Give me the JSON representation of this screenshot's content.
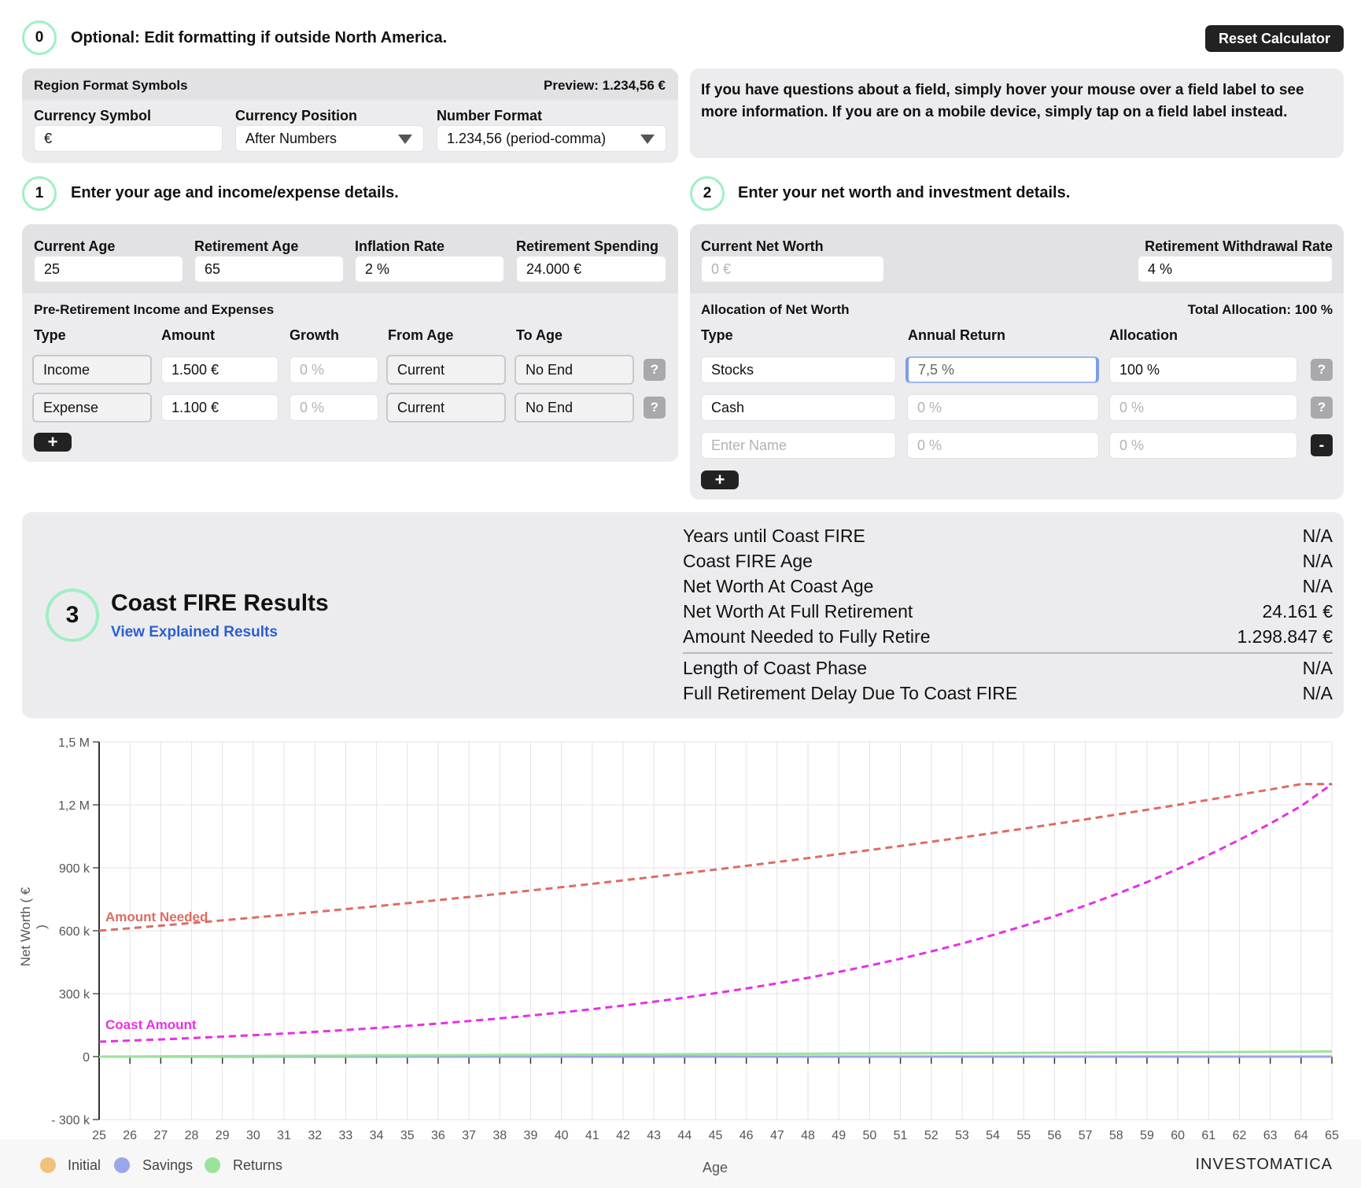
{
  "step0": {
    "number": "0",
    "title": "Optional: Edit formatting if outside North America.",
    "reset_label": "Reset Calculator"
  },
  "region": {
    "heading": "Region Format Symbols",
    "preview": "Preview: 1.234,56 €",
    "currency_symbol_label": "Currency Symbol",
    "currency_symbol_value": "€",
    "currency_position_label": "Currency Position",
    "currency_position_value": "After Numbers",
    "number_format_label": "Number Format",
    "number_format_value": "1.234,56 (period-comma)"
  },
  "info_text": "If you have questions about a field, simply hover your mouse over a field label to see more information. If you are on a mobile device, simply tap on a field label instead.",
  "step1": {
    "number": "1",
    "title": "Enter your age and income/expense details.",
    "current_age_label": "Current Age",
    "current_age": "25",
    "retirement_age_label": "Retirement Age",
    "retirement_age": "65",
    "inflation_label": "Inflation Rate",
    "inflation": "2 %",
    "spending_label": "Retirement Spending",
    "spending": "24.000 €",
    "section_title": "Pre-Retirement Income and Expenses",
    "columns": [
      "Type",
      "Amount",
      "Growth",
      "From Age",
      "To Age"
    ],
    "rows": [
      {
        "type": "Income",
        "amount": "1.500 €",
        "growth": "0 %",
        "from": "Current",
        "to": "No End",
        "help": "?"
      },
      {
        "type": "Expense",
        "amount": "1.100 €",
        "growth": "0 %",
        "from": "Current",
        "to": "No End",
        "help": "?"
      }
    ],
    "add_label": "+"
  },
  "step2": {
    "number": "2",
    "title": "Enter your net worth and investment details.",
    "net_worth_label": "Current Net Worth",
    "net_worth_placeholder": "0 €",
    "withdrawal_label": "Retirement Withdrawal Rate",
    "withdrawal": "4 %",
    "section_title": "Allocation of Net Worth",
    "total_allocation": "Total Allocation: 100 %",
    "columns": [
      "Type",
      "Annual Return",
      "Allocation"
    ],
    "rows": [
      {
        "type": "Stocks",
        "return": "7,5 %",
        "allocation": "100 %",
        "btn": "?"
      },
      {
        "type": "Cash",
        "return": "0 %",
        "allocation": "0 %",
        "btn": "?"
      },
      {
        "type": "Enter Name",
        "return": "0 %",
        "allocation": "0 %",
        "btn": "-"
      }
    ],
    "add_label": "+"
  },
  "results": {
    "number": "3",
    "title": "Coast FIRE Results",
    "link": "View Explained Results",
    "rows": [
      {
        "label": "Years until Coast FIRE",
        "value": "N/A"
      },
      {
        "label": "Coast FIRE Age",
        "value": "N/A"
      },
      {
        "label": "Net Worth At Coast Age",
        "value": "N/A"
      },
      {
        "label": "Net Worth At Full Retirement",
        "value": "24.161 €"
      },
      {
        "label": "Amount Needed to Fully Retire",
        "value": "1.298.847 €"
      },
      {
        "label": "Length of Coast Phase",
        "value": "N/A"
      },
      {
        "label": "Full Retirement Delay Due To Coast FIRE",
        "value": "N/A"
      }
    ]
  },
  "chart_data": {
    "type": "line",
    "xlabel": "Age",
    "ylabel": "Net Worth ( € )",
    "xlim": [
      25,
      65
    ],
    "ylim": [
      -300000,
      1500000
    ],
    "y_ticks": [
      -300000,
      0,
      300000,
      600000,
      900000,
      1200000,
      1500000
    ],
    "y_tick_labels": [
      "- 300 k",
      "0",
      "300 k",
      "600 k",
      "900 k",
      "1,2 M",
      "1,5 M"
    ],
    "x": [
      25,
      26,
      27,
      28,
      29,
      30,
      31,
      32,
      33,
      34,
      35,
      36,
      37,
      38,
      39,
      40,
      41,
      42,
      43,
      44,
      45,
      46,
      47,
      48,
      49,
      50,
      51,
      52,
      53,
      54,
      55,
      56,
      57,
      58,
      59,
      60,
      61,
      62,
      63,
      64,
      65
    ],
    "series": [
      {
        "name": "Amount Needed",
        "color": "#de6b63",
        "dashed": true,
        "values": [
          600000,
          612000,
          624240,
          636725,
          649459,
          662448,
          675697,
          689211,
          702996,
          717056,
          731397,
          746025,
          760945,
          776164,
          791687,
          807521,
          823671,
          840145,
          856948,
          874087,
          891568,
          909400,
          927588,
          946139,
          965062,
          984363,
          1004050,
          1024131,
          1044614,
          1065506,
          1086816,
          1108553,
          1130724,
          1153338,
          1176405,
          1199933,
          1223932,
          1248411,
          1273379,
          1298847,
          1298847
        ]
      },
      {
        "name": "Coast Amount",
        "color": "#e630e6",
        "dashed": true,
        "values": [
          71140,
          76476,
          82212,
          88377,
          95006,
          102131,
          109791,
          118025,
          126877,
          136393,
          146622,
          157619,
          169440,
          182148,
          195809,
          210495,
          226282,
          243253,
          261497,
          281109,
          302192,
          324857,
          349221,
          375413,
          403569,
          433837,
          466374,
          501353,
          538954,
          579376,
          622829,
          669541,
          719757,
          773738,
          831769,
          894152,
          961213,
          1033304,
          1110801,
          1194111,
          1298847
        ]
      },
      {
        "name": "Initial",
        "color": "#f1c27d",
        "values": [
          0,
          0,
          0,
          0,
          0,
          0,
          0,
          0,
          0,
          0,
          0,
          0,
          0,
          0,
          0,
          0,
          0,
          0,
          0,
          0,
          0,
          0,
          0,
          0,
          0,
          0,
          0,
          0,
          0,
          0,
          0,
          0,
          0,
          0,
          0,
          0,
          0,
          0,
          0,
          0,
          0
        ]
      },
      {
        "name": "Savings",
        "color": "#9aa6ea",
        "values": [
          0,
          0,
          0,
          0,
          0,
          0,
          0,
          0,
          0,
          0,
          0,
          0,
          0,
          0,
          0,
          0,
          0,
          0,
          0,
          0,
          0,
          0,
          0,
          0,
          0,
          0,
          0,
          0,
          0,
          0,
          0,
          0,
          0,
          0,
          0,
          0,
          0,
          0,
          0,
          0,
          0
        ]
      },
      {
        "name": "Returns",
        "color": "#9be39b",
        "values": [
          0,
          600,
          1200,
          1800,
          2400,
          3000,
          3600,
          4200,
          4800,
          5400,
          6000,
          6600,
          7200,
          7800,
          8400,
          9000,
          9600,
          10200,
          10800,
          11400,
          12000,
          12600,
          13200,
          13800,
          14400,
          15000,
          15600,
          16200,
          16800,
          17400,
          18000,
          18600,
          19200,
          19800,
          20400,
          21000,
          21600,
          22200,
          22800,
          23400,
          24161
        ]
      }
    ],
    "legend": [
      "Initial",
      "Savings",
      "Returns"
    ],
    "legend_position": "bottom-left",
    "grid": true
  },
  "footer": {
    "brand": "INVESTOMATICA",
    "legend_colors": {
      "initial": "#f1c27d",
      "savings": "#9aa6ea",
      "returns": "#9be39b"
    }
  }
}
